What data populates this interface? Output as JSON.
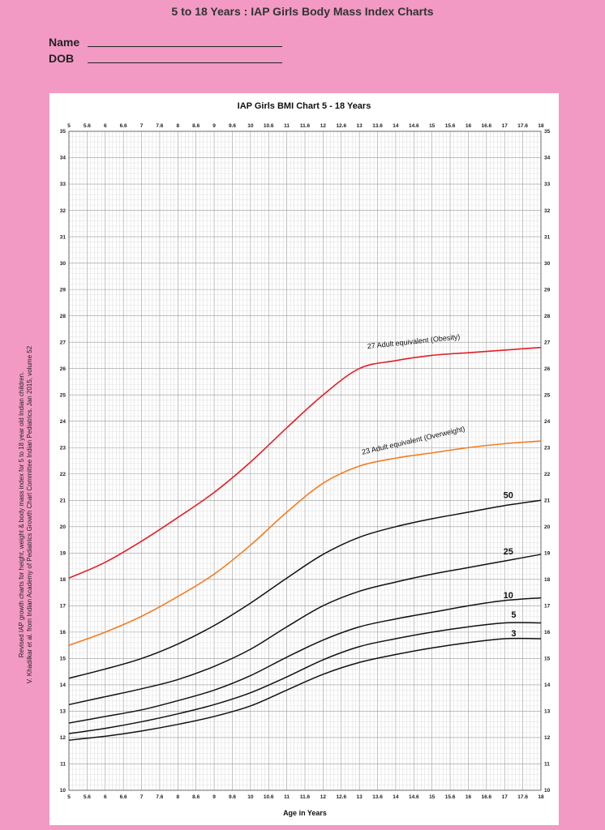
{
  "page": {
    "title": "5 to 18 Years : IAP Girls Body Mass Index Charts",
    "name_label": "Name",
    "dob_label": "DOB",
    "side_note": [
      "Revised IAP growth charts for height, weight & body mass index for 5 to 18 year old Indian children.",
      "V. Khadilkar et al. from Indian Academy of Pediatrics Growth Chart Committee Indian Pediatrics. Jan 2015, volume 52"
    ]
  },
  "colors": {
    "background": "#f29ac4",
    "obesity": "#e31e24",
    "overweight": "#f47c20",
    "percentile": "#111111",
    "grid": "#bdbdbd"
  },
  "chart_data": {
    "type": "line",
    "title": "IAP Girls BMI Chart 5 - 18 Years",
    "xlabel": "Age in Years",
    "ylabel": "",
    "xlim": [
      5,
      18
    ],
    "ylim": [
      10,
      35
    ],
    "x_ticks": [
      "5",
      "5.6",
      "6",
      "6.6",
      "7",
      "7.6",
      "8",
      "8.6",
      "9",
      "9.6",
      "10",
      "10.6",
      "11",
      "11.6",
      "12",
      "12.6",
      "13",
      "13.6",
      "14",
      "14.6",
      "15",
      "15.6",
      "16",
      "16.6",
      "17",
      "17.6",
      "18"
    ],
    "y_ticks": [
      "10",
      "11",
      "12",
      "13",
      "14",
      "15",
      "16",
      "17",
      "18",
      "19",
      "20",
      "21",
      "22",
      "23",
      "24",
      "25",
      "26",
      "27",
      "28",
      "29",
      "30",
      "31",
      "32",
      "33",
      "34",
      "35"
    ],
    "grid": true,
    "x": [
      5,
      6,
      7,
      8,
      9,
      10,
      11,
      12,
      13,
      14,
      15,
      16,
      17,
      18
    ],
    "series": [
      {
        "name": "27 Adult equivalent (Obesity)",
        "color": "#e31e24",
        "values": [
          18.05,
          18.65,
          19.45,
          20.35,
          21.3,
          22.45,
          23.75,
          25.0,
          26.0,
          26.3,
          26.5,
          26.6,
          26.7,
          26.8
        ]
      },
      {
        "name": "23 Adult equivalent (Overweight)",
        "color": "#f47c20",
        "values": [
          15.5,
          16.0,
          16.6,
          17.35,
          18.2,
          19.3,
          20.55,
          21.65,
          22.3,
          22.6,
          22.8,
          23.0,
          23.15,
          23.25
        ]
      },
      {
        "name": "50",
        "color": "#111111",
        "values": [
          14.25,
          14.6,
          15.0,
          15.55,
          16.25,
          17.1,
          18.05,
          18.95,
          19.6,
          20.0,
          20.3,
          20.55,
          20.8,
          21.0
        ]
      },
      {
        "name": "25",
        "color": "#111111",
        "values": [
          13.25,
          13.55,
          13.85,
          14.2,
          14.7,
          15.35,
          16.2,
          17.0,
          17.55,
          17.9,
          18.2,
          18.45,
          18.7,
          18.95
        ]
      },
      {
        "name": "10",
        "color": "#111111",
        "values": [
          12.55,
          12.8,
          13.05,
          13.4,
          13.8,
          14.35,
          15.05,
          15.7,
          16.2,
          16.5,
          16.75,
          17.0,
          17.2,
          17.3
        ]
      },
      {
        "name": "5",
        "color": "#111111",
        "values": [
          12.15,
          12.35,
          12.6,
          12.9,
          13.25,
          13.7,
          14.3,
          14.95,
          15.45,
          15.75,
          16.0,
          16.2,
          16.35,
          16.35
        ]
      },
      {
        "name": "3",
        "color": "#111111",
        "values": [
          11.9,
          12.05,
          12.25,
          12.5,
          12.8,
          13.2,
          13.8,
          14.4,
          14.85,
          15.15,
          15.4,
          15.6,
          15.75,
          15.75
        ]
      }
    ]
  }
}
